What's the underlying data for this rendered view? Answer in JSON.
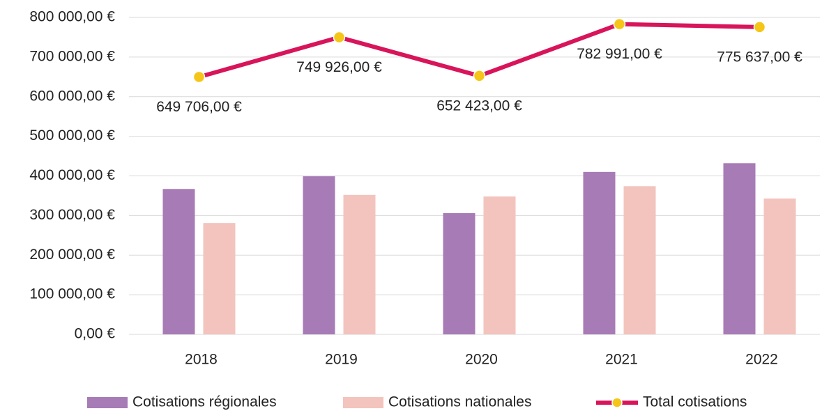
{
  "chart_data": {
    "type": "bar_line",
    "categories": [
      "2018",
      "2019",
      "2020",
      "2021",
      "2022"
    ],
    "series": [
      {
        "name": "Cotisations régionales",
        "type": "bar",
        "color": "#a77bb5",
        "values": [
          367000,
          399000,
          306000,
          410000,
          432000
        ]
      },
      {
        "name": "Cotisations nationales",
        "type": "bar",
        "color": "#f2c4bd",
        "values": [
          281000,
          352000,
          348000,
          374000,
          343000
        ]
      },
      {
        "name": "Total cotisations",
        "type": "line",
        "color": "#d8145a",
        "marker_color": "#f5c518",
        "values": [
          649706,
          749926,
          652423,
          782991,
          775637
        ],
        "value_labels": [
          "649 706,00 €",
          "749 926,00 €",
          "652 423,00 €",
          "782 991,00 €",
          "775 637,00 €"
        ]
      }
    ],
    "ylim": [
      0,
      800000
    ],
    "yticks": [
      {
        "value": 0,
        "label": "0,00 €"
      },
      {
        "value": 100000,
        "label": "100 000,00 €"
      },
      {
        "value": 200000,
        "label": "200 000,00 €"
      },
      {
        "value": 300000,
        "label": "300 000,00 €"
      },
      {
        "value": 400000,
        "label": "400 000,00 €"
      },
      {
        "value": 500000,
        "label": "500 000,00 €"
      },
      {
        "value": 600000,
        "label": "600 000,00 €"
      },
      {
        "value": 700000,
        "label": "700 000,00 €"
      },
      {
        "value": 800000,
        "label": "800 000,00 €"
      }
    ],
    "grid": true,
    "legend": "bottom"
  }
}
